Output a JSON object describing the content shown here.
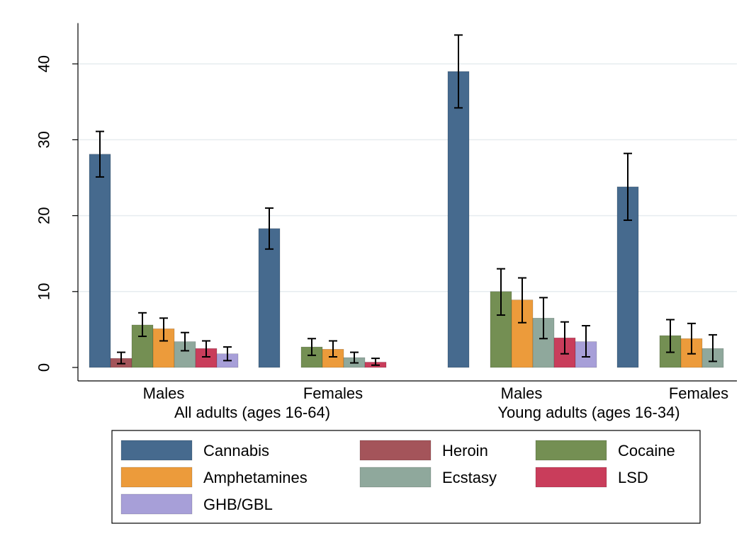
{
  "chart_data": {
    "type": "bar",
    "title": "",
    "xlabel": "",
    "ylabel": "",
    "ylim": [
      0,
      45
    ],
    "yticks": [
      0,
      10,
      20,
      30,
      40
    ],
    "grid": true,
    "legend_position": "bottom",
    "groups": [
      {
        "label": "All adults (ages 16-64)",
        "subgroups": [
          "Males",
          "Females"
        ]
      },
      {
        "label": "Young adults (ages 16-34)",
        "subgroups": [
          "Males",
          "Females"
        ]
      }
    ],
    "categories": [
      "Males",
      "Females",
      "Males",
      "Females"
    ],
    "series": [
      {
        "name": "Cannabis",
        "color": "#466a8e",
        "values": [
          28.1,
          18.3,
          39.0,
          23.8
        ],
        "ci_low": [
          25.1,
          15.6,
          34.2,
          19.4
        ],
        "ci_high": [
          31.1,
          21.0,
          43.8,
          28.2
        ]
      },
      {
        "name": "Heroin",
        "color": "#a4545a",
        "values": [
          1.2,
          null,
          null,
          null
        ],
        "ci_low": [
          0.5,
          null,
          null,
          null
        ],
        "ci_high": [
          2.0,
          null,
          null,
          null
        ]
      },
      {
        "name": "Cocaine",
        "color": "#748f53",
        "values": [
          5.6,
          2.7,
          10.0,
          4.2
        ],
        "ci_low": [
          4.1,
          1.6,
          6.9,
          2.0
        ],
        "ci_high": [
          7.2,
          3.8,
          13.0,
          6.3
        ]
      },
      {
        "name": "Amphetamines",
        "color": "#ec9b3b",
        "values": [
          5.1,
          2.4,
          8.9,
          3.8
        ],
        "ci_low": [
          3.5,
          1.4,
          5.9,
          1.8
        ],
        "ci_high": [
          6.5,
          3.5,
          11.8,
          5.8
        ]
      },
      {
        "name": "Ecstasy",
        "color": "#8fa89c",
        "values": [
          3.4,
          1.3,
          6.5,
          2.5
        ],
        "ci_low": [
          2.2,
          0.6,
          3.8,
          0.8
        ],
        "ci_high": [
          4.6,
          2.0,
          9.2,
          4.3
        ]
      },
      {
        "name": "LSD",
        "color": "#c93d5b",
        "values": [
          2.5,
          0.7,
          3.9,
          null
        ],
        "ci_low": [
          1.4,
          0.3,
          1.8,
          null
        ],
        "ci_high": [
          3.5,
          1.2,
          6.0,
          null
        ]
      },
      {
        "name": "GHB/GBL",
        "color": "#a79fd8",
        "values": [
          1.8,
          null,
          3.4,
          null
        ],
        "ci_low": [
          0.9,
          null,
          1.4,
          null
        ],
        "ci_high": [
          2.7,
          null,
          5.5,
          null
        ]
      }
    ]
  }
}
